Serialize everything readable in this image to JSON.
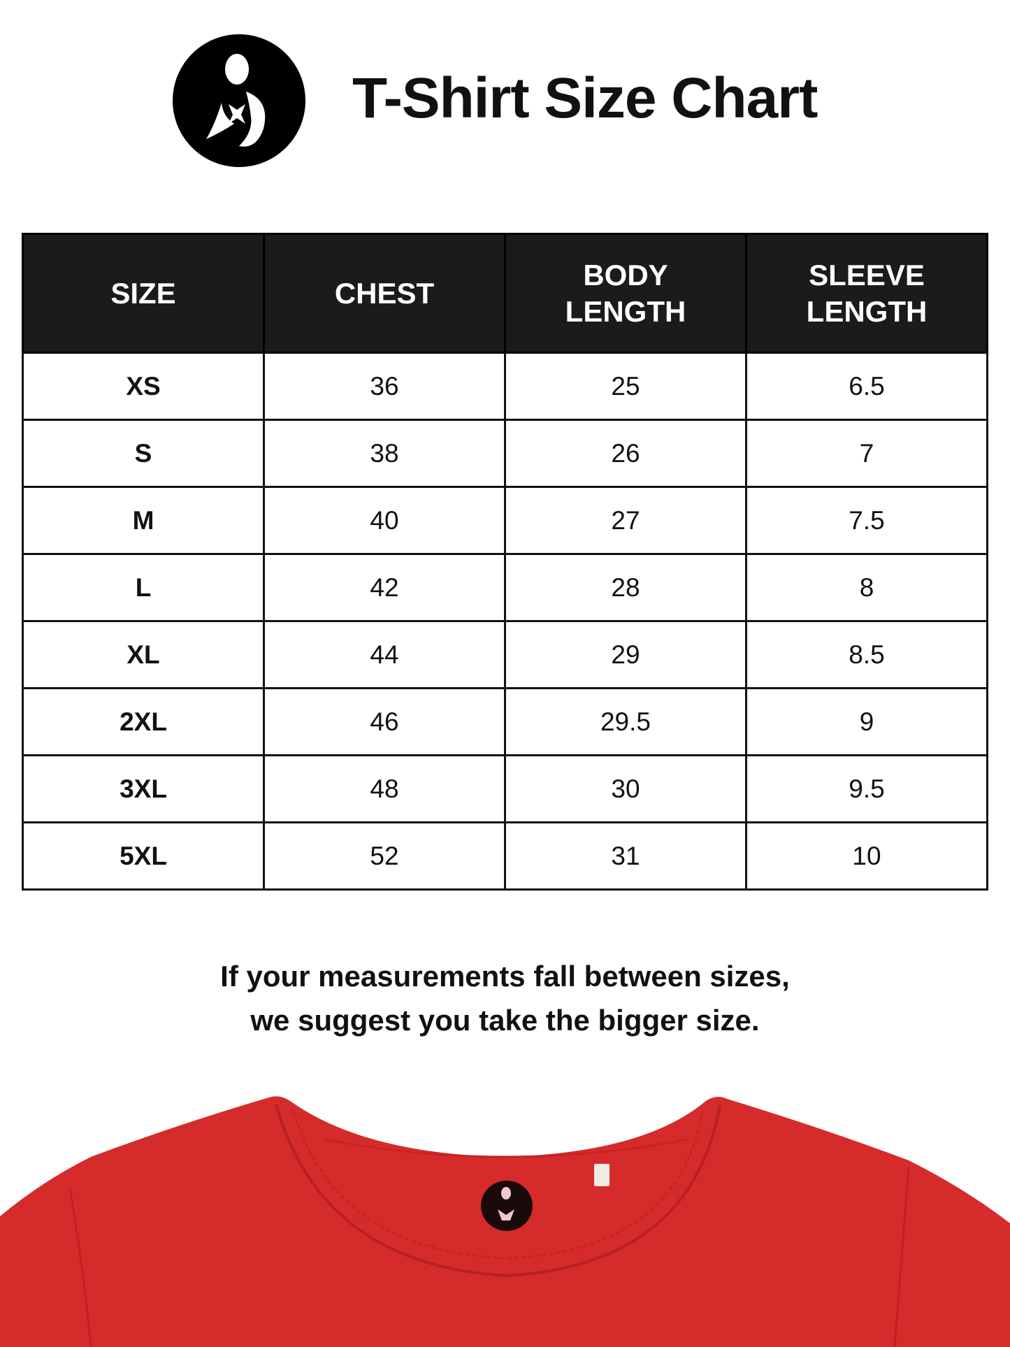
{
  "header": {
    "title": "T-Shirt Size Chart",
    "logo": "mother-child-logo"
  },
  "table": {
    "columns": [
      "SIZE",
      "CHEST",
      "BODY\nLENGTH",
      "SLEEVE\nLENGTH"
    ],
    "rows": [
      [
        "XS",
        "36",
        "25",
        "6.5"
      ],
      [
        "S",
        "38",
        "26",
        "7"
      ],
      [
        "M",
        "40",
        "27",
        "7.5"
      ],
      [
        "L",
        "42",
        "28",
        "8"
      ],
      [
        "XL",
        "44",
        "29",
        "8.5"
      ],
      [
        "2XL",
        "46",
        "29.5",
        "9"
      ],
      [
        "3XL",
        "48",
        "30",
        "9.5"
      ],
      [
        "5XL",
        "52",
        "31",
        "10"
      ]
    ]
  },
  "note": {
    "line1": "If your measurements fall between sizes,",
    "line2": "we suggest you take the bigger size."
  },
  "colors": {
    "header_bg": "#1b1b1b",
    "shirt": "#d62b2b"
  }
}
